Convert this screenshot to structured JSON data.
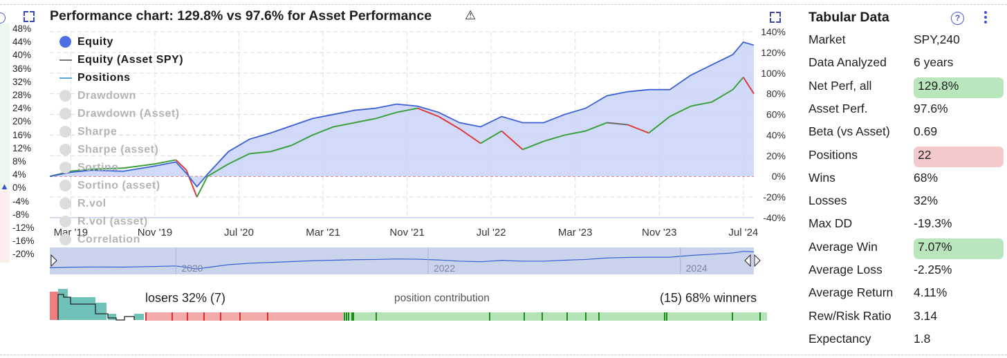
{
  "left_panel": {
    "y_axis": [
      "48%",
      "44%",
      "40%",
      "36%",
      "32%",
      "28%",
      "24%",
      "20%",
      "16%",
      "12%",
      "8%",
      "4%",
      "0%",
      "-4%",
      "-8%",
      "-12%",
      "-16%",
      "-20%"
    ]
  },
  "header": {
    "title": "Performance chart: 129.8% vs 97.6% for Asset Performance",
    "warning_icon": "warning-icon",
    "expand_icon": "expand-icon"
  },
  "legend": {
    "items": [
      {
        "label": "Equity",
        "active": true
      },
      {
        "label": "Equity (Asset SPY)",
        "active": true
      },
      {
        "label": "Positions",
        "active": true
      },
      {
        "label": "Drawdown",
        "active": false
      },
      {
        "label": "Drawdown (Asset)",
        "active": false
      },
      {
        "label": "Sharpe",
        "active": false
      },
      {
        "label": "Sharpe (asset)",
        "active": false
      },
      {
        "label": "Sortino",
        "active": false
      },
      {
        "label": "Sortino (asset)",
        "active": false
      },
      {
        "label": "R.vol",
        "active": false
      },
      {
        "label": "R.vol (asset)",
        "active": false
      },
      {
        "label": "Correlation",
        "active": false
      }
    ]
  },
  "chart_data": {
    "type": "area",
    "x_ticks": [
      "Mar '19",
      "Nov '19",
      "Jul '20",
      "Mar '21",
      "Nov '21",
      "Jul '22",
      "Mar '23",
      "Nov '23",
      "Jul '24"
    ],
    "y_ticks": [
      "140%",
      "120%",
      "100%",
      "80%",
      "60%",
      "40%",
      "20%",
      "0%",
      "-20%",
      "-40%"
    ],
    "ylim": [
      -40,
      140
    ],
    "navigator_years": [
      "2020",
      "2022",
      "2024"
    ],
    "colors": {
      "equity": "#3a5fd6",
      "equity_fill": "#c9d3f7",
      "asset_gain": "#3c9f3c",
      "asset_loss": "#dd3b3b",
      "asset_neutral": "#666666",
      "zero_line": "#e06666"
    },
    "series": [
      {
        "name": "Equity",
        "x": [
          "2019-01",
          "2019-03",
          "2019-05",
          "2019-08",
          "2019-11",
          "2020-01",
          "2020-02",
          "2020-03",
          "2020-04",
          "2020-06",
          "2020-08",
          "2020-10",
          "2020-12",
          "2021-02",
          "2021-04",
          "2021-06",
          "2021-08",
          "2021-10",
          "2021-12",
          "2022-02",
          "2022-04",
          "2022-06",
          "2022-08",
          "2022-10",
          "2022-12",
          "2023-02",
          "2023-04",
          "2023-06",
          "2023-08",
          "2023-10",
          "2023-12",
          "2024-02",
          "2024-04",
          "2024-06",
          "2024-07",
          "2024-08"
        ],
        "values": [
          0,
          4,
          6,
          5,
          10,
          14,
          3,
          -10,
          2,
          24,
          36,
          42,
          49,
          56,
          60,
          64,
          66,
          70,
          68,
          62,
          52,
          48,
          58,
          52,
          52,
          60,
          66,
          78,
          82,
          84,
          84,
          98,
          108,
          118,
          130,
          127
        ]
      },
      {
        "name": "Equity (Asset SPY)",
        "x": [
          "2019-01",
          "2019-03",
          "2019-05",
          "2019-08",
          "2019-11",
          "2020-01",
          "2020-02",
          "2020-03",
          "2020-04",
          "2020-06",
          "2020-08",
          "2020-10",
          "2020-12",
          "2021-02",
          "2021-04",
          "2021-06",
          "2021-08",
          "2021-10",
          "2021-12",
          "2022-02",
          "2022-04",
          "2022-06",
          "2022-08",
          "2022-10",
          "2022-12",
          "2023-02",
          "2023-04",
          "2023-06",
          "2023-08",
          "2023-10",
          "2023-12",
          "2024-02",
          "2024-04",
          "2024-06",
          "2024-07",
          "2024-08"
        ],
        "values": [
          0,
          5,
          7,
          8,
          12,
          16,
          6,
          -20,
          0,
          12,
          22,
          24,
          30,
          40,
          48,
          52,
          56,
          62,
          66,
          58,
          46,
          32,
          44,
          26,
          34,
          40,
          44,
          52,
          50,
          42,
          58,
          68,
          72,
          84,
          96,
          80
        ]
      }
    ]
  },
  "positions_bar": {
    "losers_text": "losers 32% (7)",
    "center_text": "position contribution",
    "winners_text": "(15) 68% winners",
    "loser_count": 7,
    "winner_count": 15,
    "loser_pct": 32,
    "winner_pct": 68,
    "colors": {
      "loss": "#f4aaaa",
      "win": "#b6e3b6",
      "loss_tick": "#d42e2e",
      "win_tick": "#1d8a1d"
    }
  },
  "tabular": {
    "title": "Tabular Data",
    "rows": [
      {
        "label": "Market",
        "value": "SPY,240",
        "highlight": "none"
      },
      {
        "label": "Data Analyzed",
        "value": "6 years",
        "highlight": "none"
      },
      {
        "label": "Net Perf, all",
        "value": "129.8%",
        "highlight": "green"
      },
      {
        "label": "Asset Perf.",
        "value": "97.6%",
        "highlight": "none"
      },
      {
        "label": "Beta (vs Asset)",
        "value": "0.69",
        "highlight": "none"
      },
      {
        "label": "Positions",
        "value": "22",
        "highlight": "red"
      },
      {
        "label": "Wins",
        "value": "68%",
        "highlight": "none"
      },
      {
        "label": "Losses",
        "value": "32%",
        "highlight": "none"
      },
      {
        "label": "Max DD",
        "value": "-19.3%",
        "highlight": "none"
      },
      {
        "label": "Average Win",
        "value": "7.07%",
        "highlight": "green"
      },
      {
        "label": "Average Loss",
        "value": "-2.25%",
        "highlight": "none"
      },
      {
        "label": "Average Return",
        "value": "4.11%",
        "highlight": "none"
      },
      {
        "label": "Rew/Risk Ratio",
        "value": "3.14",
        "highlight": "none"
      },
      {
        "label": "Expectancy",
        "value": "1.8",
        "highlight": "none"
      }
    ]
  }
}
